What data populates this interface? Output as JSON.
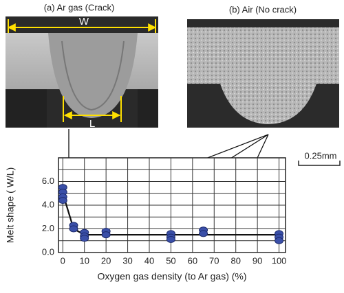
{
  "panels": {
    "a_title": "(a) Ar gas (Crack)",
    "b_title": "(b) Air (No crack)",
    "w_label": "W",
    "l_label": "L",
    "scale_label": "0.25mm"
  },
  "chart_data": {
    "type": "scatter",
    "x_label": "Oxygen gas density (to Ar gas) (%)",
    "y_label": "Melt shape ( W/L)",
    "xlim": [
      -2,
      103
    ],
    "xticks": [
      0,
      10,
      20,
      30,
      40,
      50,
      60,
      70,
      80,
      90,
      100
    ],
    "ylim": [
      0,
      8
    ],
    "yticks": [
      {
        "value": 0,
        "label": "0.0"
      },
      {
        "value": 2,
        "label": "2.0"
      },
      {
        "value": 4,
        "label": "4.0"
      },
      {
        "value": 6,
        "label": "6.0"
      }
    ],
    "yminor": [
      1,
      3,
      5,
      7
    ],
    "grid": true,
    "series": [
      {
        "color": "#3a4fa8",
        "x": [
          0,
          0,
          0,
          0,
          5,
          5,
          10,
          10,
          10,
          20,
          20,
          50,
          50,
          50,
          65,
          65,
          100,
          100,
          100
        ],
        "values": [
          5.5,
          5.1,
          4.7,
          4.4,
          2.3,
          2.0,
          1.7,
          1.4,
          1.2,
          1.8,
          1.5,
          1.6,
          1.3,
          1.1,
          1.9,
          1.6,
          1.6,
          1.3,
          1.0
        ]
      }
    ],
    "trend": {
      "color": "#111111",
      "x": [
        0,
        5,
        10,
        100
      ],
      "values": [
        5.0,
        2.0,
        1.5,
        1.5
      ]
    }
  }
}
